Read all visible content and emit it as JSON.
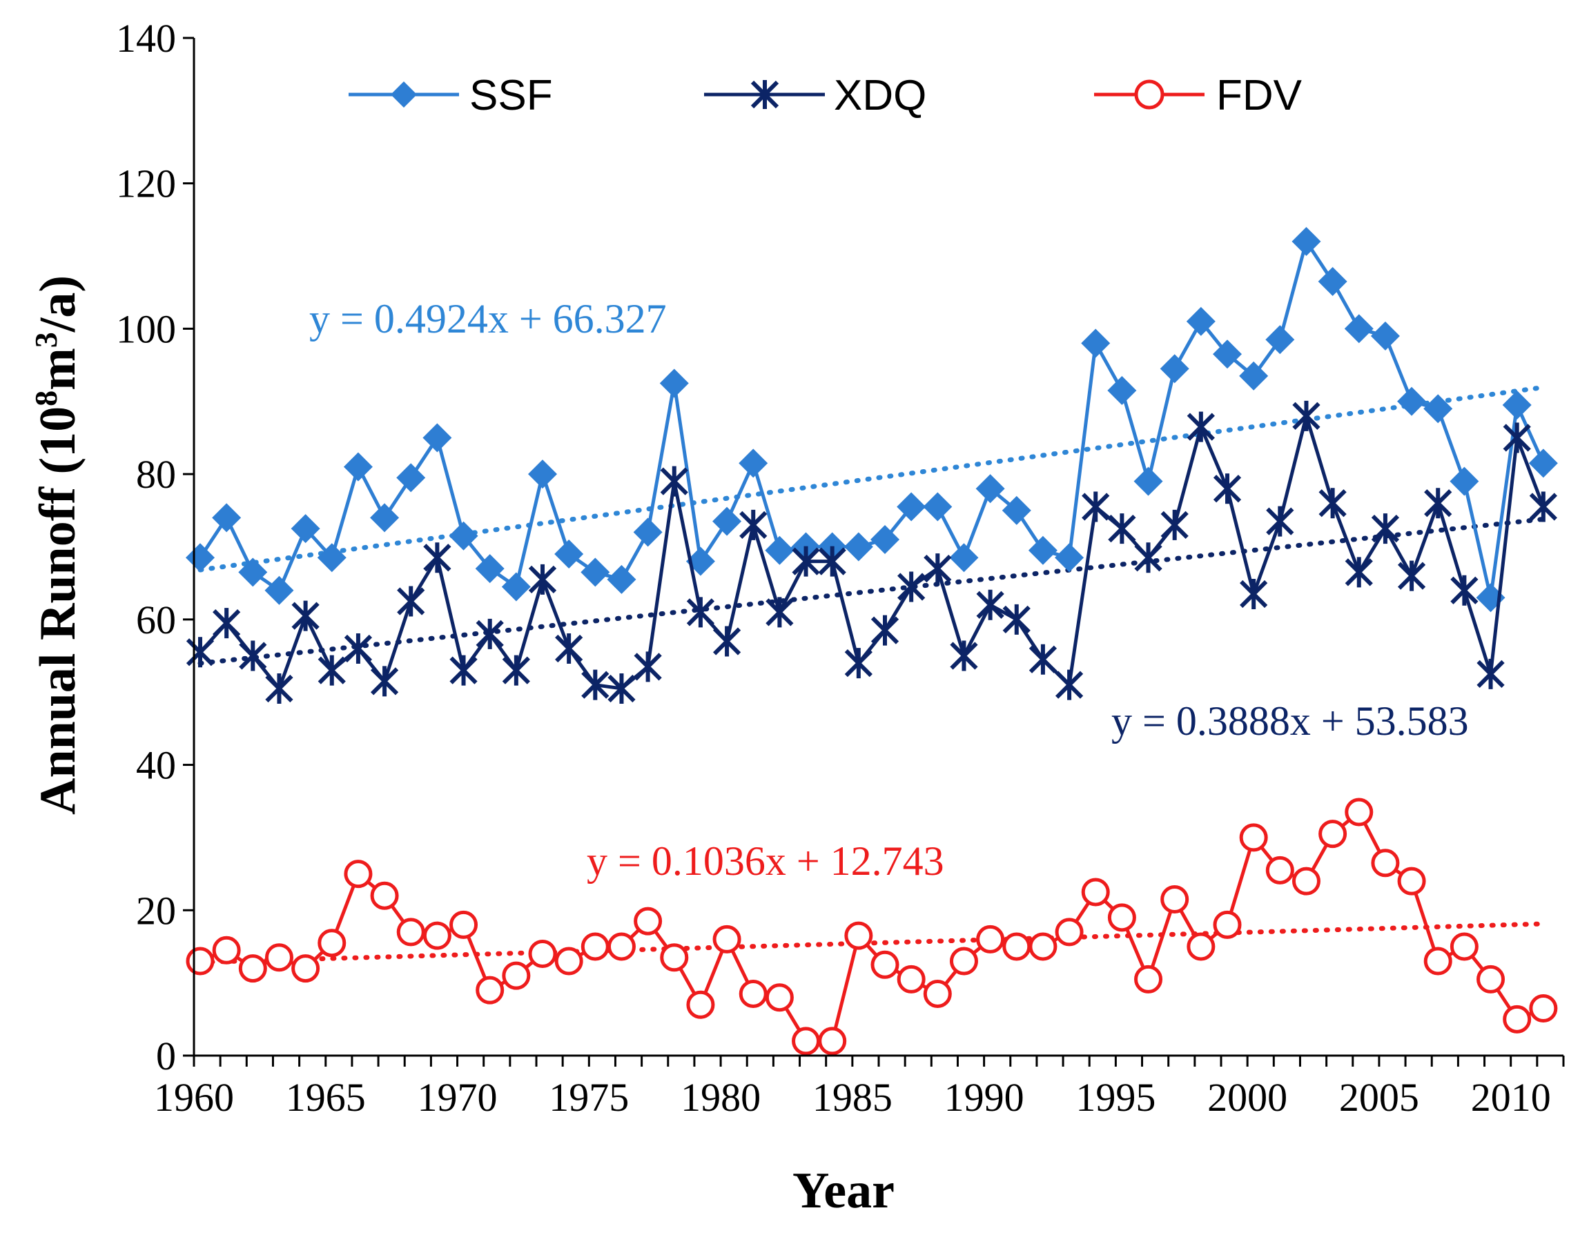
{
  "chart_data": {
    "type": "line",
    "title": "",
    "xlabel": "Year",
    "ylabel_prefix": "Annual Runoff (10",
    "ylabel_sup1": "8",
    "ylabel_mid": "m",
    "ylabel_sup2": "3",
    "ylabel_suffix": "/a)",
    "xlim": [
      1960,
      2012
    ],
    "ylim": [
      0,
      140
    ],
    "xticks": [
      1960,
      1965,
      1970,
      1975,
      1980,
      1985,
      1990,
      1995,
      2000,
      2005,
      2010
    ],
    "yticks": [
      0,
      20,
      40,
      60,
      80,
      100,
      120,
      140
    ],
    "legend_position": "top",
    "x": [
      1960,
      1961,
      1962,
      1963,
      1964,
      1965,
      1966,
      1967,
      1968,
      1969,
      1970,
      1971,
      1972,
      1973,
      1974,
      1975,
      1976,
      1977,
      1978,
      1979,
      1980,
      1981,
      1982,
      1983,
      1984,
      1985,
      1986,
      1987,
      1988,
      1989,
      1990,
      1991,
      1992,
      1993,
      1994,
      1995,
      1996,
      1997,
      1998,
      1999,
      2000,
      2001,
      2002,
      2003,
      2004,
      2005,
      2006,
      2007,
      2008,
      2009,
      2010,
      2011
    ],
    "series": [
      {
        "name": "SSF",
        "color": "#2e7ed3",
        "marker": "diamond",
        "values": [
          68.5,
          74,
          66.5,
          64,
          72.5,
          68.5,
          81,
          74,
          79.5,
          85,
          71.5,
          67,
          64.5,
          80,
          69,
          66.5,
          65.5,
          72,
          92.5,
          68,
          73.5,
          81.5,
          69.5,
          70,
          70,
          70,
          71,
          75.5,
          75.5,
          68.5,
          78,
          75,
          69.5,
          68.5,
          98,
          91.5,
          79,
          94.5,
          101,
          96.5,
          93.5,
          98.5,
          112,
          106.5,
          100,
          99,
          90,
          89,
          79,
          63,
          89.5,
          81.5
        ],
        "trend": {
          "slope": 0.4924,
          "intercept": 66.327,
          "equation": "y = 0.4924x + 66.327",
          "color": "#2e86d6"
        }
      },
      {
        "name": "XDQ",
        "color": "#0c2466",
        "marker": "asterisk",
        "values": [
          55.5,
          59.5,
          55,
          50.5,
          60.5,
          53,
          56,
          51.5,
          62.5,
          68.5,
          53,
          58,
          53,
          65.5,
          56,
          51,
          50.5,
          53.5,
          79,
          61,
          57,
          73,
          61,
          68,
          68,
          54,
          58.5,
          64.5,
          67,
          55,
          62,
          60,
          54.5,
          51,
          75.5,
          72.5,
          68.5,
          73,
          86.5,
          78,
          63.5,
          73.5,
          88,
          76,
          66.5,
          72.5,
          66,
          76,
          64,
          52.5,
          85,
          75.5
        ],
        "trend": {
          "slope": 0.3888,
          "intercept": 53.583,
          "equation": "y = 0.3888x + 53.583",
          "color": "#0c2466"
        }
      },
      {
        "name": "FDV",
        "color": "#ee1c1c",
        "marker": "circle",
        "values": [
          13,
          14.5,
          12,
          13.5,
          12,
          15.5,
          25,
          22,
          17,
          16.5,
          18,
          9,
          11,
          14,
          13,
          15,
          15,
          18.5,
          13.5,
          7,
          16,
          8.5,
          8,
          2,
          2,
          16.5,
          12.5,
          10.5,
          8.5,
          13,
          16,
          15,
          15,
          17,
          22.5,
          19,
          10.5,
          21.5,
          15,
          18,
          30,
          25.5,
          24,
          30.5,
          33.5,
          26.5,
          24,
          13,
          15,
          10.5,
          5,
          6.5
        ],
        "trend": {
          "slope": 0.1036,
          "intercept": 12.743,
          "equation": "y = 0.1036x + 12.743",
          "color": "#ee1c1c"
        }
      }
    ]
  }
}
